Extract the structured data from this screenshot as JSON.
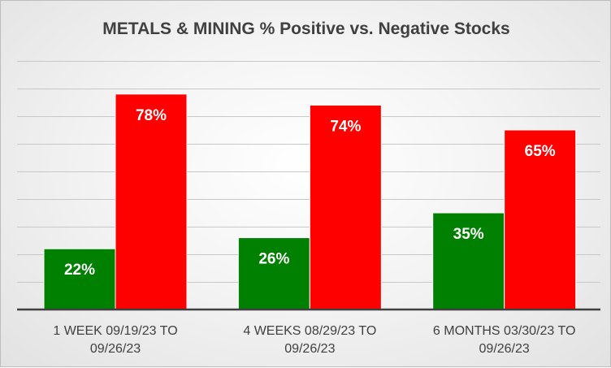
{
  "chart_data": {
    "type": "bar",
    "title": "METALS & MINING % Positive vs. Negative Stocks",
    "xlabel": "",
    "ylabel": "",
    "ylim": [
      0,
      1.0
    ],
    "grid": true,
    "legend": "none",
    "categories": [
      [
        "1 WEEK 09/19/23 TO",
        "09/26/23"
      ],
      [
        "4 WEEKS 08/29/23 TO",
        "09/26/23"
      ],
      [
        "6 MONTHS 03/30/23 TO",
        "09/26/23"
      ]
    ],
    "series": [
      {
        "name": "Positive",
        "color": "#008000",
        "values": [
          0.22,
          0.26,
          0.35
        ],
        "labels": [
          "22%",
          "26%",
          "35%"
        ]
      },
      {
        "name": "Negative",
        "color": "#ff0000",
        "values": [
          0.78,
          0.74,
          0.65
        ],
        "labels": [
          "78%",
          "74%",
          "65%"
        ]
      }
    ]
  }
}
